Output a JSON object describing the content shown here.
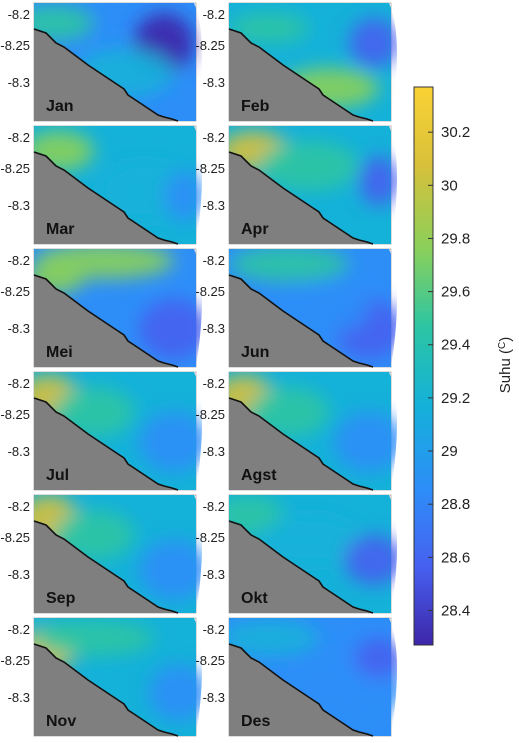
{
  "panel_ytick_labels": [
    "-8.2",
    "-8.25",
    "-8.3"
  ],
  "months": [
    "Jan",
    "Feb",
    "Mar",
    "Apr",
    "Mei",
    "Jun",
    "Jul",
    "Agst",
    "Sep",
    "Okt",
    "Nov",
    "Des"
  ],
  "colorbar": {
    "label": "Suhu (",
    "label_sup": "C",
    "label_close": ")",
    "ticks": [
      "30.2",
      "30",
      "29.8",
      "29.6",
      "29.4",
      "29.2",
      "29",
      "28.8",
      "28.6",
      "28.4"
    ],
    "tick_values": [
      30.2,
      30.0,
      29.8,
      29.6,
      29.4,
      29.2,
      29.0,
      28.8,
      28.6,
      28.4
    ],
    "range": [
      28.27,
      30.37
    ],
    "colormap": [
      "#3e26a8",
      "#4760f0",
      "#2d8ef8",
      "#14b1d9",
      "#2cc5a3",
      "#8ad05a",
      "#d8c03a",
      "#f9d335"
    ]
  },
  "land_color": "#7f7f7f",
  "coast_color": "#111111"
}
